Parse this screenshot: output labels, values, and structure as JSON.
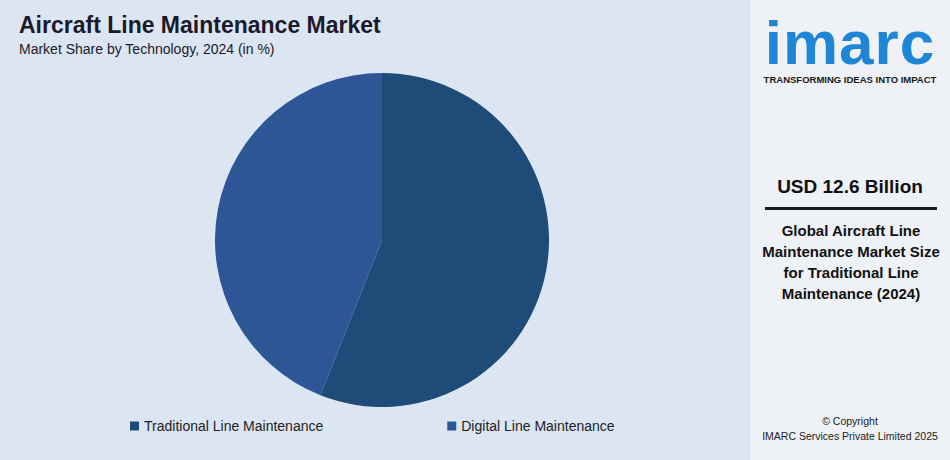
{
  "chart_data": {
    "type": "pie",
    "title": "Aircraft Line Maintenance Market",
    "subtitle": "Market Share by Technology, 2024 (in %)",
    "categories": [
      "Traditional Line Maintenance",
      "Digital Line Maintenance"
    ],
    "values": [
      56,
      44
    ],
    "colors": [
      "#1e4b78",
      "#2e5596"
    ],
    "legend": "bottom",
    "data_labels": false
  },
  "panel": {
    "brand": "imarc",
    "tagline": "TRANSFORMING IDEAS INTO IMPACT",
    "headline": "USD 12.6 Billion",
    "description": "Global Aircraft Line Maintenance Market Size for Traditional Line Maintenance (2024)",
    "copyright": [
      "© Copyright",
      "IMARC Services Private Limited 2025"
    ]
  }
}
